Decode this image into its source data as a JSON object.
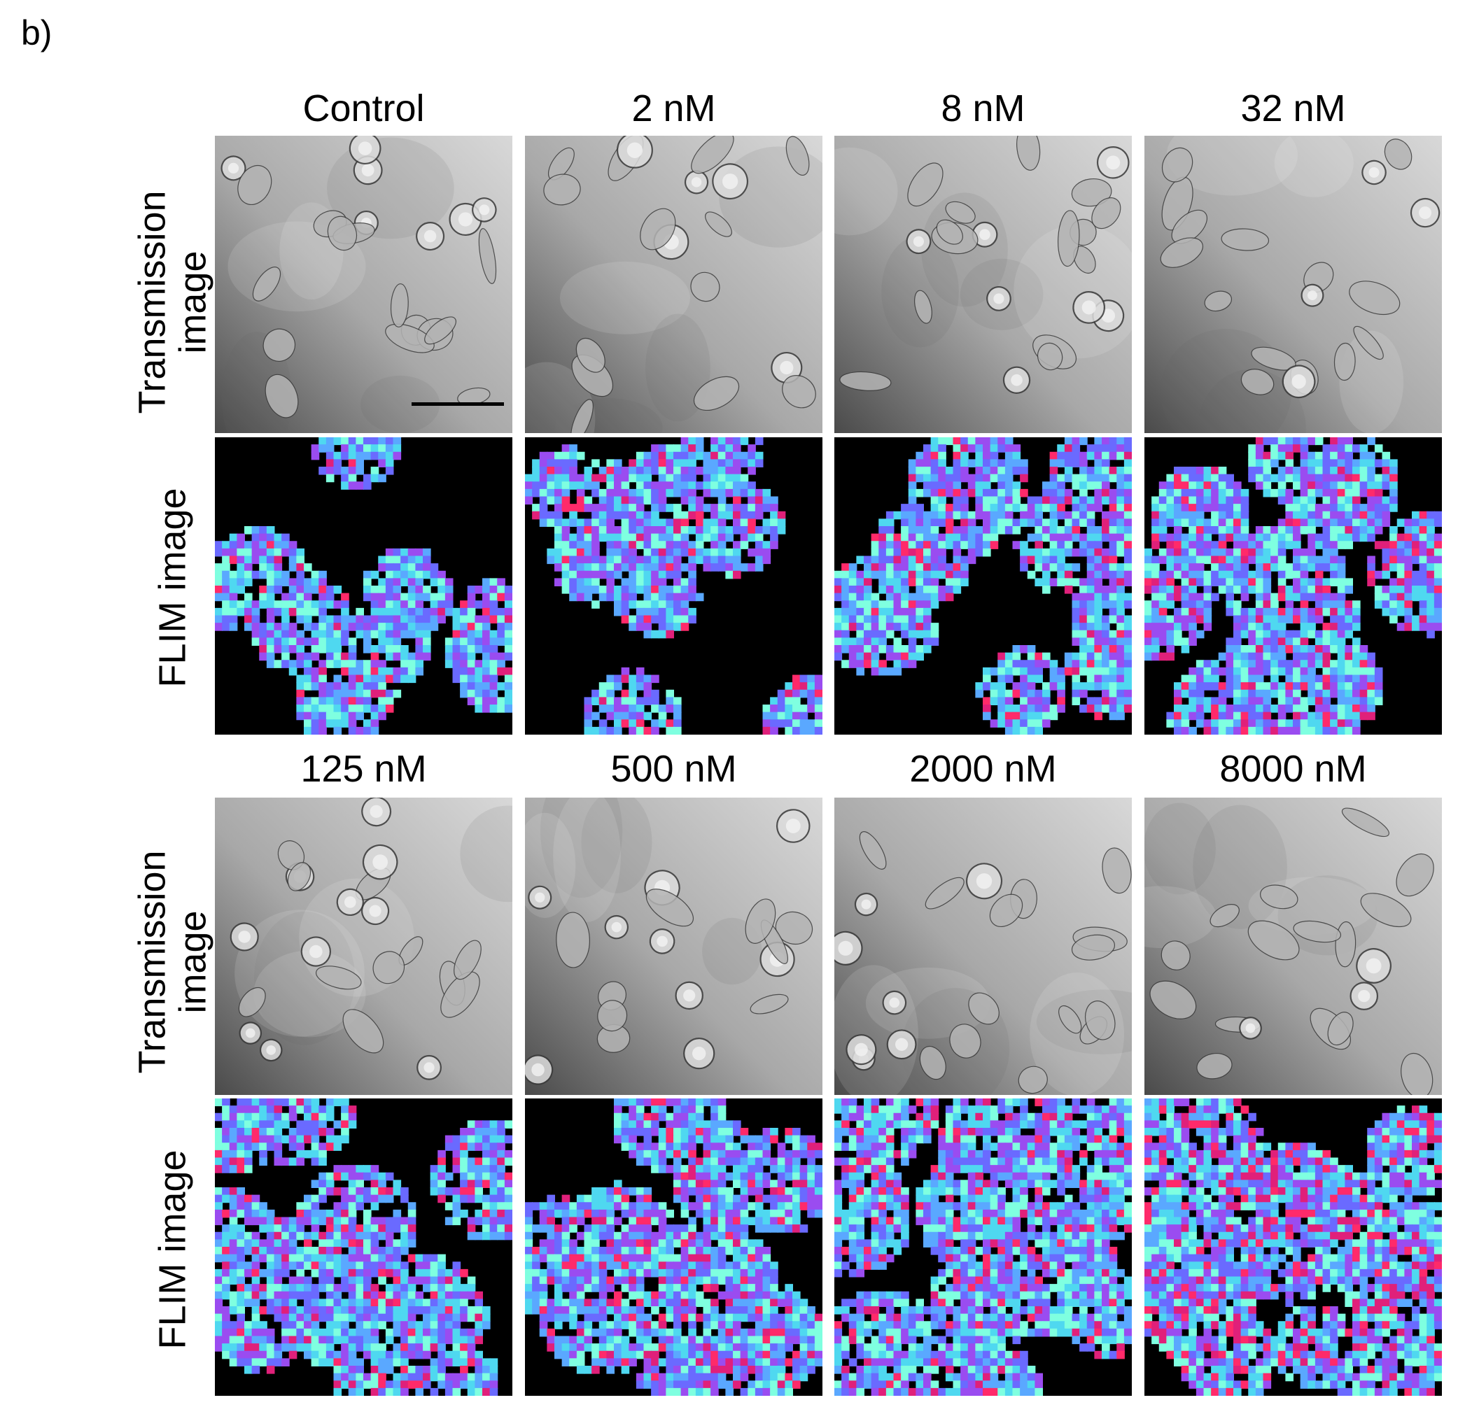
{
  "panel_label": "b)",
  "blocks": [
    {
      "columns": [
        "Control",
        "2 nM",
        "8 nM",
        "32 nM"
      ],
      "row_labels": {
        "transmission": "Transmission\nimage",
        "flim": "FLIM image"
      }
    },
    {
      "columns": [
        "125 nM",
        "500 nM",
        "2000 nM",
        "8000 nM"
      ],
      "row_labels": {
        "transmission": "Transmission\nimage",
        "flim": "FLIM image"
      }
    }
  ],
  "flim_palette": [
    "#7fffe0",
    "#4fd8f0",
    "#5aa8ff",
    "#6a6aff",
    "#9a4cf0",
    "#e0207a",
    "#ff2a6a"
  ],
  "flim_density": [
    0.3,
    0.33,
    0.42,
    0.55,
    0.58,
    0.66,
    0.6,
    0.7
  ],
  "flim_red_fraction": [
    0.05,
    0.06,
    0.09,
    0.1,
    0.11,
    0.14,
    0.12,
    0.18
  ],
  "scale_bar_on_panel": "Control"
}
